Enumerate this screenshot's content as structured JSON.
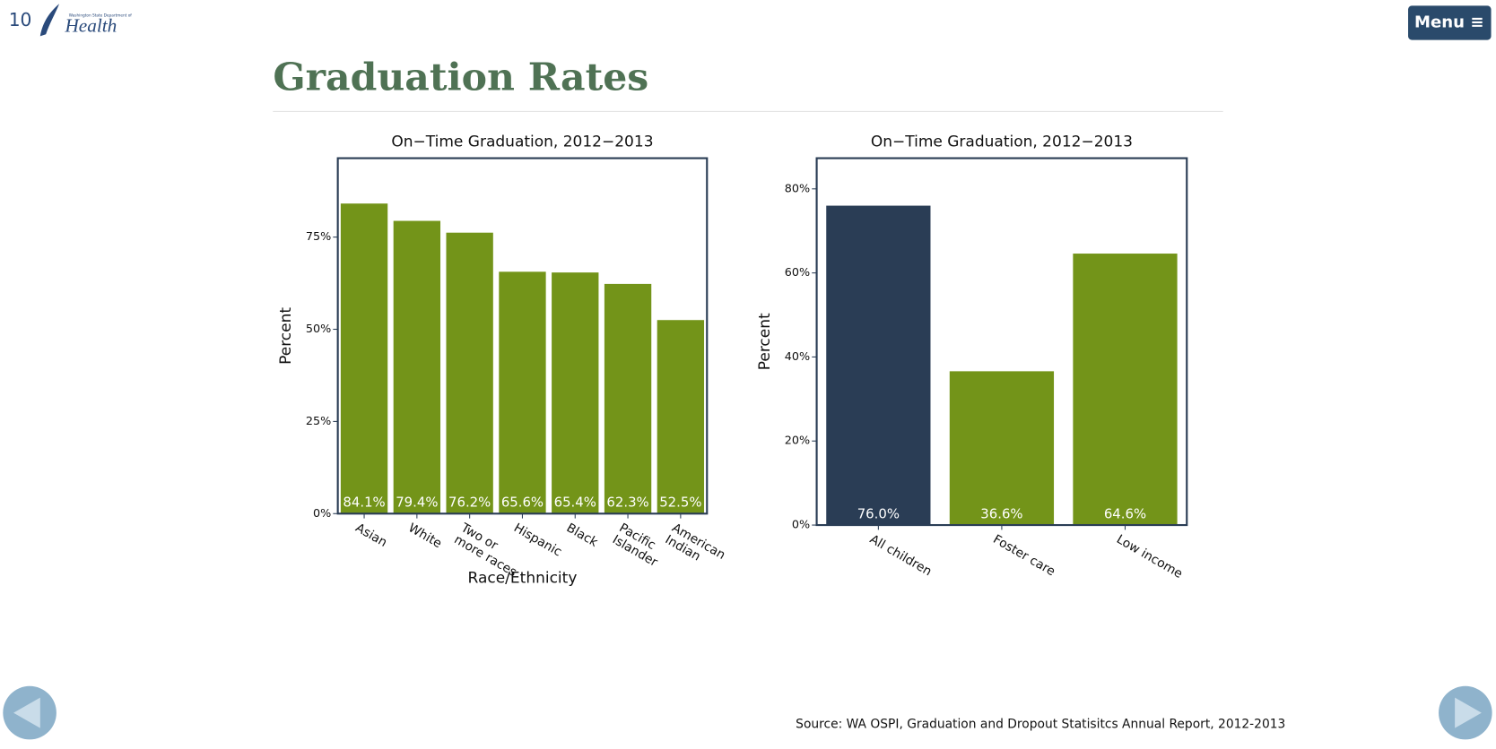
{
  "page_number": "10",
  "logo": {
    "agency": "Washington State Department of",
    "name": "Health"
  },
  "menu": "Menu ≡",
  "title": "Graduation Rates",
  "source": "Source: WA OSPI, Graduation and Dropout Statisitcs Annual Report, 2012-2013",
  "chart_data": [
    {
      "type": "bar",
      "title": "On−Time Graduation, 2012−2013",
      "y_label": "Percent",
      "x_label": "Race/Ethnicity",
      "categories": [
        "Asian",
        "White",
        "Two or\nmore races",
        "Hispanic",
        "Black",
        "Pacific\nIslander",
        "American\nIndian"
      ],
      "values": [
        84.1,
        79.4,
        76.2,
        65.6,
        65.4,
        62.3,
        52.5
      ],
      "value_labels": [
        "84.1%",
        "79.4%",
        "76.2%",
        "65.6%",
        "65.4%",
        "62.3%",
        "52.5%"
      ],
      "colors": [
        "#739419",
        "#739419",
        "#739419",
        "#739419",
        "#739419",
        "#739419",
        "#739419"
      ],
      "ylim": [
        0,
        96.4
      ],
      "yticks": [
        {
          "value": 0,
          "label": "0%"
        },
        {
          "value": 25,
          "label": "25%"
        },
        {
          "value": 50,
          "label": "50%"
        },
        {
          "value": 75,
          "label": "75%"
        }
      ]
    },
    {
      "type": "bar",
      "title": "On−Time Graduation, 2012−2013",
      "y_label": "Percent",
      "categories": [
        "All children",
        "Foster care",
        "Low income"
      ],
      "values": [
        76.0,
        36.6,
        64.6
      ],
      "value_labels": [
        "76.0%",
        "36.6%",
        "64.6%"
      ],
      "colors": [
        "#2a3d55",
        "#739419",
        "#739419"
      ],
      "ylim": [
        0,
        87.3
      ],
      "yticks": [
        {
          "value": 0,
          "label": "0%"
        },
        {
          "value": 20,
          "label": "20%"
        },
        {
          "value": 40,
          "label": "40%"
        },
        {
          "value": 60,
          "label": "60%"
        },
        {
          "value": 80,
          "label": "80%"
        }
      ]
    }
  ]
}
